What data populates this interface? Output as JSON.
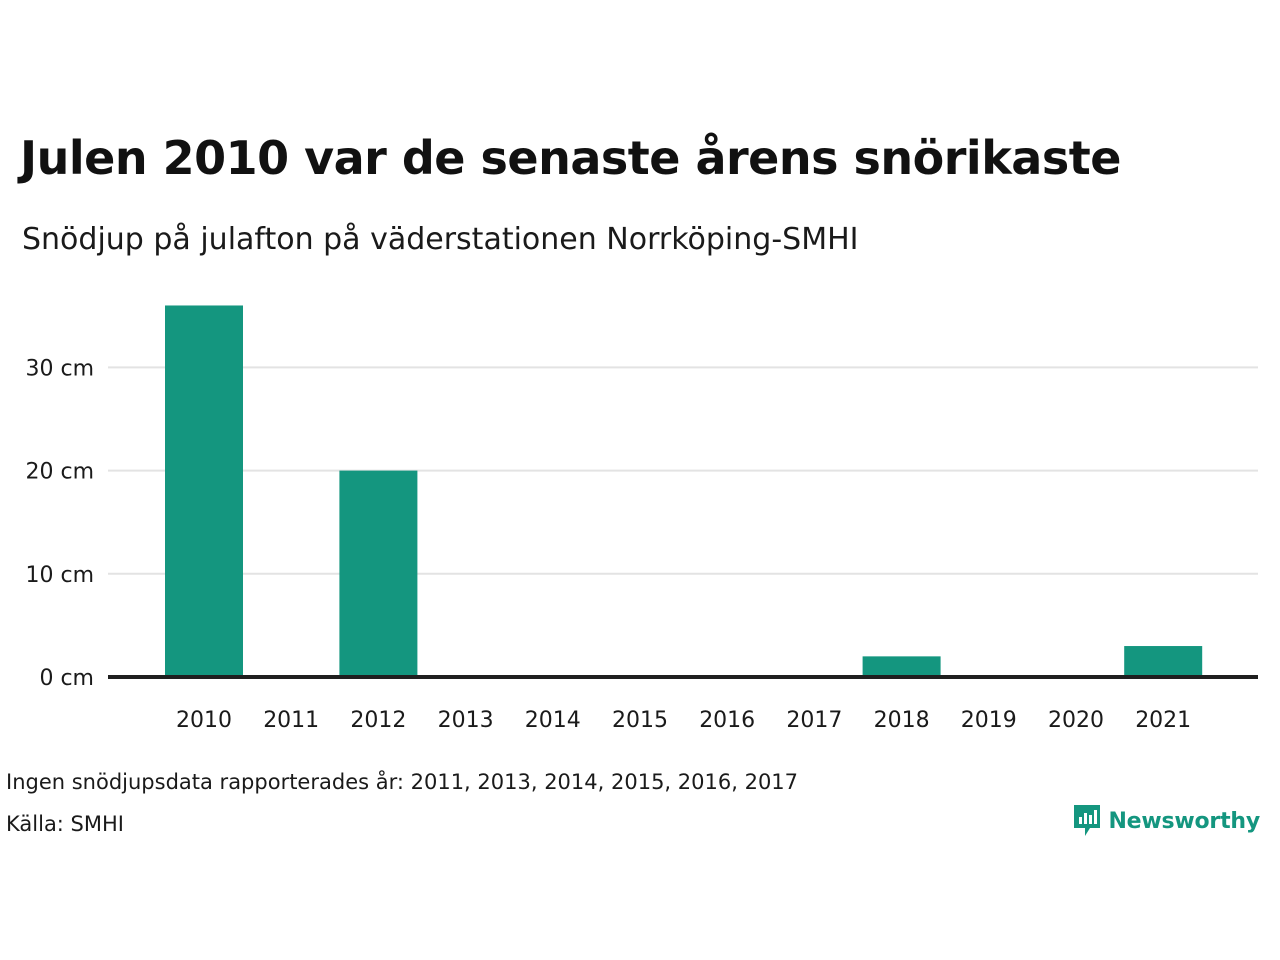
{
  "header": {
    "title": "Julen 2010 var de senaste årens snörikaste",
    "subtitle": "Snödjup på julafton på väderstationen Norrköping-SMHI"
  },
  "chart_data": {
    "type": "bar",
    "categories": [
      "2010",
      "2011",
      "2012",
      "2013",
      "2014",
      "2015",
      "2016",
      "2017",
      "2018",
      "2019",
      "2020",
      "2021"
    ],
    "values": [
      36,
      null,
      20,
      null,
      null,
      null,
      null,
      null,
      2,
      null,
      null,
      3
    ],
    "unit": "cm",
    "yticks": [
      "0 cm",
      "10 cm",
      "20 cm",
      "30 cm"
    ],
    "ytick_values": [
      0,
      10,
      20,
      30
    ],
    "ylim": [
      0,
      37.5
    ],
    "grid": true,
    "bar_color": "#14967f"
  },
  "footer": {
    "missing_note": "Ingen snödjupsdata rapporterades år: 2011, 2013, 2014, 2015, 2016, 2017",
    "source": "Källa: SMHI",
    "brand": "Newsworthy",
    "brand_icon": "newsworthy-logo-icon",
    "brand_color": "#14967f"
  }
}
